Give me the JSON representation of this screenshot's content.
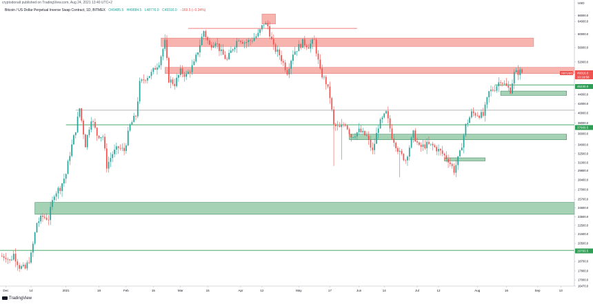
{
  "header": {
    "publisher_line": "cryptodonalt published on TradingView.com, Aug 24, 2021 13:40 UTC+2",
    "symbol_line": "Bitcoin / US Dollar Perpetual Inverse Swap Contract, 1D, BITMEX",
    "ohlc": {
      "open": "O49485.5",
      "high": "H49884.5",
      "low": "L48776.0",
      "close": "C49316.0",
      "change": "−169.5 (−0.34%)"
    }
  },
  "axis_currency": "USD",
  "price_badges": {
    "last_price": "49316.0",
    "countdown": "10:19:58",
    "symbol_tag": "XBTUSD",
    "green_level_1": "46230.0",
    "green_level_2": "37669.5",
    "green_level_3": "19783.5"
  },
  "branding": {
    "logo_text": "TradingView"
  },
  "colors": {
    "up": "#26a69a",
    "down": "#ef5350",
    "zone_red": "#f28b82",
    "zone_green": "#7fbf96",
    "line_green": "#2e9e55"
  },
  "chart_data": {
    "type": "candlestick",
    "y_scale": "log",
    "y_range": [
      16470,
      68500
    ],
    "y_ticks": [
      "66000.0",
      "64000.0",
      "60000.0",
      "56000.0",
      "52000.0",
      "48000.0",
      "46000.0",
      "44000.0",
      "42000.0",
      "40000.0",
      "38000.0",
      "36000.0",
      "34000.0",
      "32500.0",
      "31000.0",
      "29800.0",
      "28400.0",
      "27000.0",
      "25700.0",
      "24600.0",
      "23500.0",
      "22500.0",
      "21500.0",
      "20500.0",
      "19600.0",
      "18700.0",
      "17800.0",
      "17000.0",
      "16470.0"
    ],
    "x_ticks": [
      "Dec",
      "14",
      "2021",
      "18",
      "Feb",
      "15",
      "Mar",
      "15",
      "Apr",
      "12",
      "May",
      "17",
      "Jun",
      "14",
      "Jul",
      "12",
      "Aug",
      "16",
      "Sep",
      "13"
    ],
    "x_tick_dates": [
      "2020-12-01",
      "2020-12-14",
      "2021-01-01",
      "2021-01-18",
      "2021-02-01",
      "2021-02-15",
      "2021-03-01",
      "2021-03-15",
      "2021-04-01",
      "2021-04-12",
      "2021-05-01",
      "2021-05-17",
      "2021-06-01",
      "2021-06-14",
      "2021-07-01",
      "2021-07-12",
      "2021-08-01",
      "2021-08-16",
      "2021-09-01",
      "2021-09-13"
    ],
    "x_range": [
      "2020-11-28",
      "2021-09-20"
    ],
    "candle_anchors": [
      [
        "2020-12-01",
        19200,
        "2020-12-03",
        18700
      ],
      [
        "2020-12-05",
        19400,
        "2020-12-08",
        18200
      ],
      [
        "2020-12-11",
        18000,
        "2020-12-14",
        19300
      ],
      [
        "2020-12-17",
        22800,
        "2020-12-20",
        23500
      ],
      [
        "2020-12-23",
        23300,
        "2020-12-26",
        26500
      ],
      [
        "2020-12-29",
        27300,
        "2021-01-01",
        29300
      ],
      [
        "2021-01-03",
        32500,
        "2021-01-06",
        36800
      ],
      [
        "2021-01-08",
        41000,
        "2021-01-11",
        34000
      ],
      [
        "2021-01-14",
        39000,
        "2021-01-17",
        35800
      ],
      [
        "2021-01-20",
        35500,
        "2021-01-22",
        30500
      ],
      [
        "2021-01-25",
        32500,
        "2021-01-28",
        33500
      ],
      [
        "2021-01-31",
        33000,
        "2021-02-03",
        37500
      ],
      [
        "2021-02-06",
        39500,
        "2021-02-08",
        46500
      ],
      [
        "2021-02-11",
        48000,
        "2021-02-14",
        49000
      ],
      [
        "2021-02-18",
        52000,
        "2021-02-21",
        57500
      ],
      [
        "2021-02-23",
        47500,
        "2021-02-26",
        46500
      ],
      [
        "2021-03-01",
        49500,
        "2021-03-04",
        48500
      ],
      [
        "2021-03-08",
        51500,
        "2021-03-13",
        61000
      ],
      [
        "2021-03-16",
        56500,
        "2021-03-19",
        58000
      ],
      [
        "2021-03-22",
        54500,
        "2021-03-25",
        52500
      ],
      [
        "2021-03-28",
        56000,
        "2021-03-31",
        58800
      ],
      [
        "2021-04-03",
        57500,
        "2021-04-06",
        58000
      ],
      [
        "2021-04-10",
        59800,
        "2021-04-13",
        63500
      ],
      [
        "2021-04-15",
        62500,
        "2021-04-18",
        56000
      ],
      [
        "2021-04-21",
        54000,
        "2021-04-25",
        49500
      ],
      [
        "2021-04-28",
        54500,
        "2021-05-03",
        57500
      ],
      [
        "2021-05-06",
        56500,
        "2021-05-09",
        58000
      ],
      [
        "2021-05-12",
        49500,
        "2021-05-15",
        46800
      ],
      [
        "2021-05-17",
        43500,
        "2021-05-19",
        37500
      ],
      [
        "2021-05-22",
        37000,
        "2021-05-25",
        38000
      ],
      [
        "2021-05-28",
        35500,
        "2021-06-01",
        36500
      ],
      [
        "2021-06-05",
        35500,
        "2021-06-08",
        32800
      ],
      [
        "2021-06-11",
        37500,
        "2021-06-15",
        40000
      ],
      [
        "2021-06-18",
        35600,
        "2021-06-22",
        32500
      ],
      [
        "2021-06-25",
        31500,
        "2021-06-29",
        36000
      ],
      [
        "2021-07-02",
        33500,
        "2021-07-06",
        34000
      ],
      [
        "2021-07-09",
        33800,
        "2021-07-13",
        32800
      ],
      [
        "2021-07-17",
        31500,
        "2021-07-20",
        29800
      ],
      [
        "2021-07-23",
        32500,
        "2021-07-26",
        37500
      ],
      [
        "2021-07-29",
        40000,
        "2021-08-01",
        39800
      ],
      [
        "2021-08-04",
        39500,
        "2021-08-07",
        44500
      ],
      [
        "2021-08-10",
        45500,
        "2021-08-13",
        47500
      ],
      [
        "2021-08-16",
        45800,
        "2021-08-18",
        45000
      ],
      [
        "2021-08-20",
        49000,
        "2021-08-23",
        49500
      ],
      [
        "2021-08-24",
        49316,
        "2021-08-24",
        49316
      ]
    ],
    "zones": [
      {
        "kind": "red",
        "from": "2021-04-12",
        "to": "2021-04-19",
        "low": 63200,
        "high": 66500
      },
      {
        "kind": "red",
        "from": "2021-02-19",
        "to": "2021-08-30",
        "low": 56300,
        "high": 58800
      },
      {
        "kind": "red",
        "from": "2021-02-21",
        "to": "2021-09-20",
        "low": 49000,
        "high": 50600
      },
      {
        "kind": "green",
        "from": "2020-12-16",
        "to": "2021-09-20",
        "low": 23800,
        "high": 25300
      },
      {
        "kind": "green",
        "from": "2021-05-27",
        "to": "2021-09-16",
        "low": 34900,
        "high": 35900
      },
      {
        "kind": "green",
        "from": "2021-08-13",
        "to": "2021-09-16",
        "low": 43800,
        "high": 44800
      },
      {
        "kind": "green",
        "from": "2021-07-15",
        "to": "2021-08-05",
        "low": 31300,
        "high": 31800
      }
    ],
    "hlines": [
      {
        "kind": "red",
        "from": "2021-03-05",
        "to": "2021-05-31",
        "y": 61800
      },
      {
        "kind": "gray",
        "from": "2021-01-06",
        "to": "2021-09-20",
        "y": 40600
      },
      {
        "kind": "green",
        "from": "2021-08-10",
        "to": "2021-09-20",
        "y": 46230
      },
      {
        "kind": "green",
        "from": "2021-01-01",
        "to": "2021-09-20",
        "y": 37669.5
      },
      {
        "kind": "green",
        "from": "2020-11-28",
        "to": "2021-09-20",
        "y": 19783.5
      }
    ],
    "outlier_wicks": [
      {
        "date": "2021-05-19",
        "low": 30500
      },
      {
        "date": "2021-05-23",
        "low": 31500
      },
      {
        "date": "2021-06-22",
        "low": 28800
      }
    ]
  }
}
